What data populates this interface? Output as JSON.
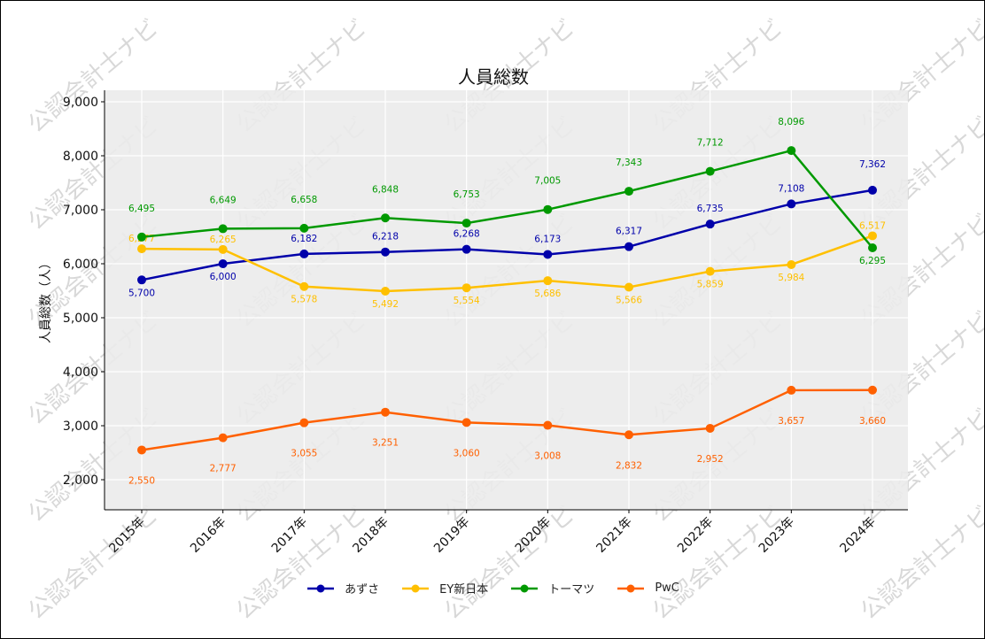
{
  "chart_data": {
    "type": "line",
    "title": "人員総数",
    "xlabel": "",
    "ylabel": "人員総数（人）",
    "x": [
      "2015年",
      "2016年",
      "2017年",
      "2018年",
      "2019年",
      "2020年",
      "2021年",
      "2022年",
      "2023年",
      "2024年"
    ],
    "ylim": [
      1443,
      9213
    ],
    "yticks": [
      2000,
      3000,
      4000,
      5000,
      6000,
      7000,
      8000,
      9000
    ],
    "ytick_labels": [
      "2,000",
      "3,000",
      "4,000",
      "5,000",
      "6,000",
      "7,000",
      "8,000",
      "9,000"
    ],
    "grid": true,
    "legend_placement": "bottom-center",
    "series": [
      {
        "name": "あずさ",
        "color": "#0000aa",
        "values": [
          5700,
          6000,
          6182,
          6218,
          6268,
          6173,
          6317,
          6735,
          7108,
          7362
        ],
        "labels": [
          "5,700",
          "6,000",
          "6,182",
          "6,218",
          "6,268",
          "6,173",
          "6,317",
          "6,735",
          "7,108",
          "7,362"
        ]
      },
      {
        "name": "EY新日本",
        "color": "#ffc000",
        "values": [
          6277,
          6265,
          5578,
          5492,
          5554,
          5686,
          5566,
          5859,
          5984,
          6517
        ],
        "labels": [
          "6,277",
          "6,265",
          "5,578",
          "5,492",
          "5,554",
          "5,686",
          "5,566",
          "5,859",
          "5,984",
          "6,517"
        ]
      },
      {
        "name": "トーマツ",
        "color": "#009900",
        "values": [
          6495,
          6649,
          6658,
          6848,
          6753,
          7005,
          7343,
          7712,
          8096,
          6295
        ],
        "labels": [
          "6,495",
          "6,649",
          "6,658",
          "6,848",
          "6,753",
          "7,005",
          "7,343",
          "7,712",
          "8,096",
          "6,295"
        ]
      },
      {
        "name": "PwC",
        "color": "#ff6000",
        "values": [
          2550,
          2777,
          3055,
          3251,
          3060,
          3008,
          2832,
          2952,
          3657,
          3660
        ],
        "labels": [
          "2,550",
          "2,777",
          "3,055",
          "3,251",
          "3,060",
          "3,008",
          "2,832",
          "2,952",
          "3,657",
          "3,660"
        ]
      }
    ],
    "watermark": "公認会計士ナビ"
  }
}
